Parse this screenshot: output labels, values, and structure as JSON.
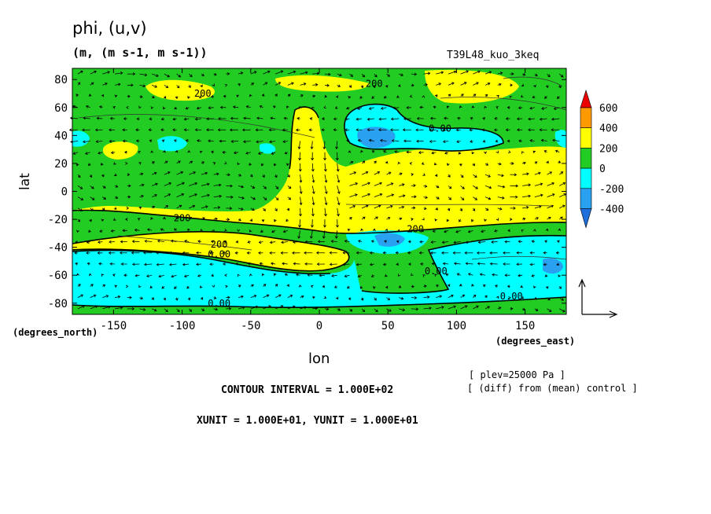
{
  "header": {
    "title": "phi, (u,v)",
    "subtitle": "(m, (m s-1, m s-1))",
    "run": "T39L48_kuo_3keq"
  },
  "axes": {
    "ylabel": "lat",
    "xlabel": "lon",
    "yunits": "(degrees_north)",
    "xunits": "(degrees_east)"
  },
  "notes": {
    "level": "[ plev=25000 Pa ]",
    "diff": "[ (diff) from (mean) control ]",
    "contour": "CONTOUR INTERVAL = 1.000E+02",
    "vector": "XUNIT = 1.000E+01, YUNIT = 1.000E+01"
  },
  "colors": {
    "below_-400": "#1e6fdc",
    "-400_-200": "#29a0f0",
    "-200_0": "#00ffff",
    "0_200": "#22cc22",
    "200_400": "#ffff00",
    "400_600": "#ff9900",
    "above_600": "#ee0000"
  },
  "chart_data": {
    "type": "filled contour with vector field",
    "variable": "phi",
    "vector": "(u,v)",
    "x": {
      "label": "lon",
      "units": "degrees_east",
      "range": [
        -180,
        180
      ],
      "ticks": [
        -150,
        -100,
        -50,
        0,
        50,
        100,
        150
      ]
    },
    "y": {
      "label": "lat",
      "units": "degrees_north",
      "range": [
        -88,
        88
      ],
      "ticks": [
        -80,
        -60,
        -40,
        -20,
        0,
        20,
        40,
        60,
        80
      ]
    },
    "colorbar": {
      "levels": [
        600,
        400,
        200,
        0,
        -200,
        -400
      ]
    },
    "contour_labels": [
      {
        "text": "200",
        "lon": -85,
        "lat": 70
      },
      {
        "text": "200",
        "lon": 40,
        "lat": 77
      },
      {
        "text": "0.00",
        "lon": 88,
        "lat": 45
      },
      {
        "text": "200",
        "lon": -100,
        "lat": -19
      },
      {
        "text": "200",
        "lon": 70,
        "lat": -27
      },
      {
        "text": "200",
        "lon": -73,
        "lat": -38
      },
      {
        "text": "0.00",
        "lon": -73,
        "lat": -45
      },
      {
        "text": "0.00",
        "lon": 85,
        "lat": -57
      },
      {
        "text": "0.00",
        "lon": -73,
        "lat": -80
      },
      {
        "text": "0.00",
        "lon": 140,
        "lat": -75
      }
    ]
  }
}
